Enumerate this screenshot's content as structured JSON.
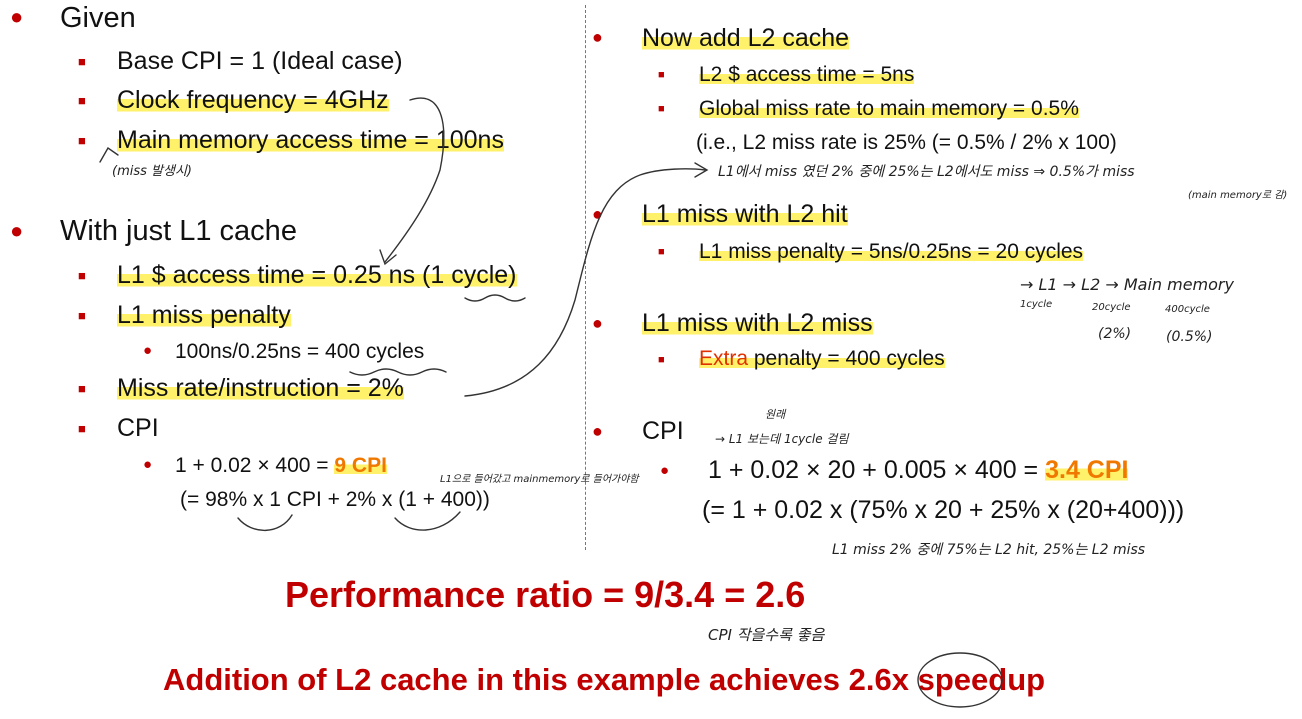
{
  "left": {
    "given": {
      "heading": "Given",
      "items": [
        "Base CPI = 1 (Ideal case)",
        "Clock frequency = 4GHz",
        "Main memory access time = 100ns"
      ],
      "note": "(miss 발생시)"
    },
    "l1only": {
      "heading": "With just L1 cache",
      "access": "L1 $ access time = 0.25 ns (1 cycle)",
      "penalty": "L1 miss penalty",
      "penalty_calc": "100ns/0.25ns = 400 cycles",
      "missrate": "Miss rate/instruction = 2%",
      "cpi_label": "CPI",
      "cpi_expr": "1 + 0.02 × 400 = ",
      "cpi_value": "9 CPI",
      "cpi_breakdown": "(= 98% x 1 CPI + 2% x (1 + 400))",
      "cpi_note": "L1으로 들어갔고 mainmemory로 들어가야함"
    }
  },
  "right": {
    "l2": {
      "heading": "Now add L2 cache",
      "access": "L2 $ access time = 5ns",
      "global_miss": "Global miss rate to main memory = 0.5%",
      "local_miss": "(i.e., L2 miss rate is 25% (= 0.5% / 2% x 100)",
      "note1": "L1에서 miss 였던 2% 중에 25%는 L2에서도 miss ⇒ 0.5%가 miss",
      "note2": "(main memory로 감)"
    },
    "hit": {
      "heading": "L1 miss with L2 hit",
      "penalty": "L1 miss penalty = 5ns/0.25ns = 20 cycles"
    },
    "diagram": {
      "chain": "→ L1 → L2 → Main memory",
      "c1": "1cycle",
      "c2": "20cycle",
      "c3": "400cycle",
      "p2": "(2%)",
      "p3": "(0.5%)"
    },
    "miss": {
      "heading": "L1 miss with L2 miss",
      "extra": "Extra",
      "penalty": " penalty = 400 cycles"
    },
    "cpi": {
      "label": "CPI",
      "note_top": "원래",
      "note": "→ L1 보는데 1cycle 걸림",
      "expr": "1 + 0.02 × 20 + 0.005 × 400 = ",
      "value": "3.4 CPI",
      "breakdown": "(= 1 + 0.02 x (75% x 20 + 25% x (20+400)))",
      "bottom_note": "L1 miss 2% 중에 75%는 L2 hit, 25%는 L2 miss"
    }
  },
  "footer": {
    "ratio": "Performance ratio = 9/3.4 = 2.6",
    "ratio_note": "CPI 작을수록 좋음",
    "conclusion_pre": "Addition of L2 cache in this example achieves ",
    "conclusion_val": "2.6x",
    "conclusion_post": " speedup"
  },
  "colors": {
    "bullet": "#c00000",
    "highlight": "#fff26a",
    "accent": "#f07800",
    "title_red": "#c00000"
  }
}
